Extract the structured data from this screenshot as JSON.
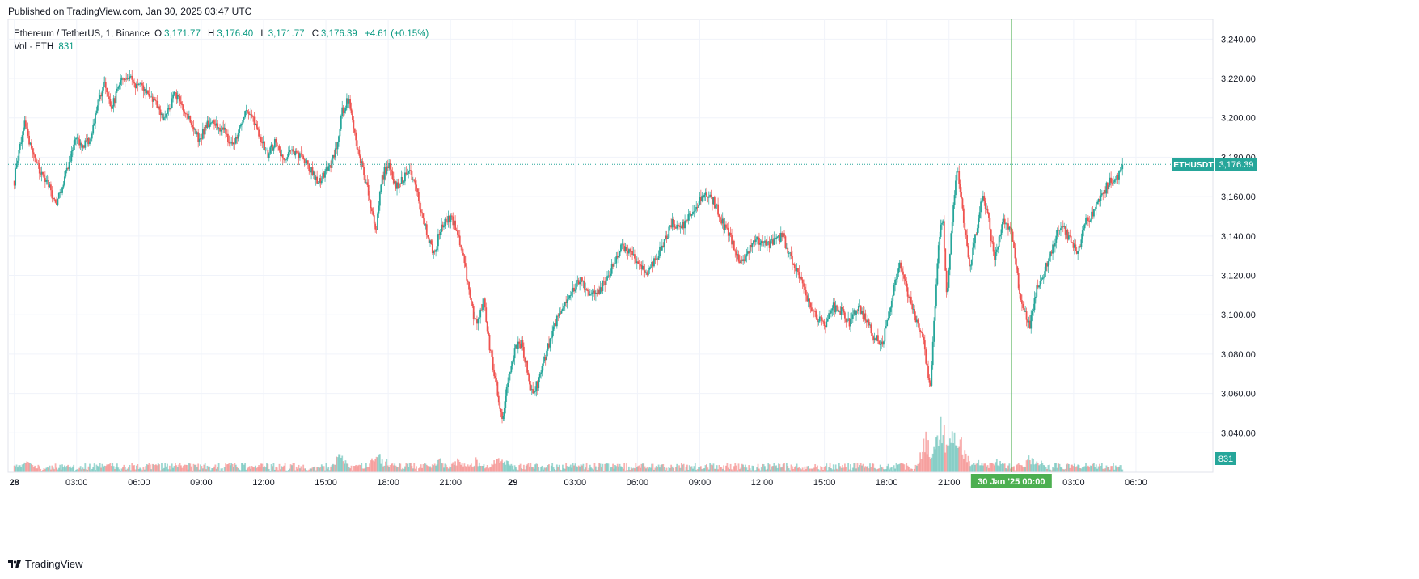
{
  "header": {
    "published": "Published on TradingView.com, Jan 30, 2025 03:47 UTC"
  },
  "legend": {
    "title": "Ethereum / TetherUS, 1, Binance",
    "o_label": "O",
    "o": "3,171.77",
    "h_label": "H",
    "h": "3,176.40",
    "l_label": "L",
    "l": "3,171.77",
    "c_label": "C",
    "c": "3,176.39",
    "change": "+4.61 (+0.15%)",
    "vol_label": "Vol · ETH",
    "vol": "831"
  },
  "footer": {
    "brand": "TradingView"
  },
  "colors": {
    "up": "#26a69a",
    "down": "#ef5350",
    "cursor": "#4caf50",
    "grid": "#f0f3fa",
    "text": "#131722"
  },
  "chart_data": {
    "type": "line",
    "title": "Ethereum / TetherUS, 1, Binance",
    "symbol_tag": "ETHUSDT",
    "last_price": 3176.39,
    "last_price_label": "3,176.39",
    "volume_label": "831",
    "y_ticks": [
      3040,
      3060,
      3080,
      3100,
      3120,
      3140,
      3160,
      3180,
      3200,
      3220,
      3240
    ],
    "y_tick_labels": [
      "3,040.00",
      "3,060.00",
      "3,080.00",
      "3,100.00",
      "3,120.00",
      "3,140.00",
      "3,160.00",
      "3,180.00",
      "3,200.00",
      "3,220.00",
      "3,240.00"
    ],
    "ylim": [
      3020,
      3250
    ],
    "x_ticks": [
      0,
      3,
      6,
      9,
      12,
      15,
      18,
      21,
      24,
      27,
      30,
      33,
      36,
      39,
      42,
      45,
      48,
      51,
      54
    ],
    "x_tick_labels": [
      "28",
      "03:00",
      "06:00",
      "09:00",
      "12:00",
      "15:00",
      "18:00",
      "21:00",
      "29",
      "03:00",
      "06:00",
      "09:00",
      "12:00",
      "15:00",
      "18:00",
      "21:00",
      "30 Jan '25",
      "03:00",
      "06:00"
    ],
    "xlim": [
      -0.3,
      57.7
    ],
    "cursor": {
      "x": 48.0,
      "label": "30 Jan '25   00:00"
    },
    "price_path": [
      [
        0,
        3168
      ],
      [
        0.2,
        3183
      ],
      [
        0.5,
        3198
      ],
      [
        0.9,
        3180
      ],
      [
        1.3,
        3172
      ],
      [
        1.7,
        3164
      ],
      [
        2.0,
        3156
      ],
      [
        2.3,
        3165
      ],
      [
        2.6,
        3175
      ],
      [
        3.0,
        3190
      ],
      [
        3.3,
        3185
      ],
      [
        3.7,
        3190
      ],
      [
        4.0,
        3206
      ],
      [
        4.3,
        3218
      ],
      [
        4.7,
        3205
      ],
      [
        5.1,
        3218
      ],
      [
        5.5,
        3220
      ],
      [
        6.0,
        3216
      ],
      [
        6.4,
        3213
      ],
      [
        6.8,
        3207
      ],
      [
        7.2,
        3198
      ],
      [
        7.7,
        3212
      ],
      [
        8.1,
        3206
      ],
      [
        8.5,
        3198
      ],
      [
        8.9,
        3188
      ],
      [
        9.3,
        3198
      ],
      [
        9.7,
        3196
      ],
      [
        10.1,
        3195
      ],
      [
        10.5,
        3184
      ],
      [
        10.9,
        3198
      ],
      [
        11.3,
        3204
      ],
      [
        11.7,
        3192
      ],
      [
        12.2,
        3182
      ],
      [
        12.6,
        3188
      ],
      [
        13.0,
        3178
      ],
      [
        13.4,
        3184
      ],
      [
        13.8,
        3180
      ],
      [
        14.2,
        3175
      ],
      [
        14.6,
        3166
      ],
      [
        15.0,
        3172
      ],
      [
        15.4,
        3180
      ],
      [
        15.8,
        3204
      ],
      [
        16.1,
        3210
      ],
      [
        16.4,
        3190
      ],
      [
        16.8,
        3172
      ],
      [
        17.1,
        3160
      ],
      [
        17.4,
        3140
      ],
      [
        17.7,
        3170
      ],
      [
        18.0,
        3176
      ],
      [
        18.4,
        3165
      ],
      [
        18.7,
        3168
      ],
      [
        19.0,
        3175
      ],
      [
        19.3,
        3165
      ],
      [
        19.6,
        3152
      ],
      [
        19.9,
        3140
      ],
      [
        20.2,
        3130
      ],
      [
        20.5,
        3143
      ],
      [
        21.0,
        3150
      ],
      [
        21.4,
        3140
      ],
      [
        21.8,
        3118
      ],
      [
        22.2,
        3095
      ],
      [
        22.6,
        3108
      ],
      [
        22.9,
        3082
      ],
      [
        23.2,
        3065
      ],
      [
        23.5,
        3044
      ],
      [
        23.8,
        3070
      ],
      [
        24.1,
        3082
      ],
      [
        24.4,
        3086
      ],
      [
        24.7,
        3072
      ],
      [
        24.9,
        3060
      ],
      [
        25.2,
        3065
      ],
      [
        25.6,
        3080
      ],
      [
        26.0,
        3095
      ],
      [
        26.4,
        3104
      ],
      [
        26.8,
        3112
      ],
      [
        27.2,
        3118
      ],
      [
        27.6,
        3112
      ],
      [
        28.0,
        3110
      ],
      [
        28.5,
        3118
      ],
      [
        28.9,
        3128
      ],
      [
        29.3,
        3135
      ],
      [
        29.7,
        3130
      ],
      [
        30.1,
        3125
      ],
      [
        30.5,
        3122
      ],
      [
        30.9,
        3128
      ],
      [
        31.3,
        3138
      ],
      [
        31.7,
        3147
      ],
      [
        32.1,
        3144
      ],
      [
        32.6,
        3152
      ],
      [
        33.0,
        3158
      ],
      [
        33.4,
        3162
      ],
      [
        33.8,
        3155
      ],
      [
        34.2,
        3144
      ],
      [
        34.6,
        3136
      ],
      [
        35.0,
        3126
      ],
      [
        35.4,
        3134
      ],
      [
        35.8,
        3138
      ],
      [
        36.2,
        3135
      ],
      [
        36.6,
        3138
      ],
      [
        37.0,
        3140
      ],
      [
        37.4,
        3128
      ],
      [
        37.8,
        3120
      ],
      [
        38.2,
        3108
      ],
      [
        38.6,
        3100
      ],
      [
        39.0,
        3094
      ],
      [
        39.4,
        3104
      ],
      [
        39.8,
        3102
      ],
      [
        40.2,
        3096
      ],
      [
        40.6,
        3104
      ],
      [
        41.0,
        3098
      ],
      [
        41.4,
        3088
      ],
      [
        41.8,
        3086
      ],
      [
        42.2,
        3104
      ],
      [
        42.6,
        3128
      ],
      [
        43.0,
        3112
      ],
      [
        43.4,
        3098
      ],
      [
        43.8,
        3085
      ],
      [
        44.1,
        3060
      ],
      [
        44.3,
        3100
      ],
      [
        44.5,
        3138
      ],
      [
        44.7,
        3150
      ],
      [
        44.9,
        3108
      ],
      [
        45.1,
        3142
      ],
      [
        45.4,
        3176
      ],
      [
        45.7,
        3148
      ],
      [
        46.0,
        3125
      ],
      [
        46.3,
        3142
      ],
      [
        46.6,
        3160
      ],
      [
        46.9,
        3148
      ],
      [
        47.2,
        3128
      ],
      [
        47.6,
        3150
      ],
      [
        48.0,
        3142
      ],
      [
        48.3,
        3118
      ],
      [
        48.6,
        3102
      ],
      [
        48.9,
        3095
      ],
      [
        49.2,
        3112
      ],
      [
        49.6,
        3122
      ],
      [
        50.0,
        3134
      ],
      [
        50.4,
        3146
      ],
      [
        50.8,
        3138
      ],
      [
        51.2,
        3132
      ],
      [
        51.6,
        3148
      ],
      [
        52.0,
        3152
      ],
      [
        52.4,
        3162
      ],
      [
        52.8,
        3168
      ],
      [
        53.1,
        3170
      ],
      [
        53.4,
        3176
      ]
    ],
    "volume_spikes": [
      [
        0.6,
        12
      ],
      [
        4.5,
        9
      ],
      [
        11.8,
        9
      ],
      [
        15.7,
        20
      ],
      [
        17.4,
        24
      ],
      [
        17.9,
        13
      ],
      [
        20.5,
        13
      ],
      [
        21.4,
        17
      ],
      [
        22.2,
        14
      ],
      [
        23.3,
        16
      ],
      [
        23.7,
        12
      ],
      [
        27.0,
        8
      ],
      [
        33.8,
        7
      ],
      [
        40.9,
        8
      ],
      [
        43.9,
        38
      ],
      [
        44.3,
        17
      ],
      [
        44.6,
        60
      ],
      [
        44.9,
        24
      ],
      [
        45.2,
        42
      ],
      [
        45.5,
        37
      ],
      [
        45.8,
        19
      ],
      [
        46.5,
        13
      ],
      [
        47.3,
        15
      ],
      [
        48.9,
        17
      ],
      [
        49.3,
        14
      ],
      [
        51.0,
        9
      ]
    ]
  }
}
